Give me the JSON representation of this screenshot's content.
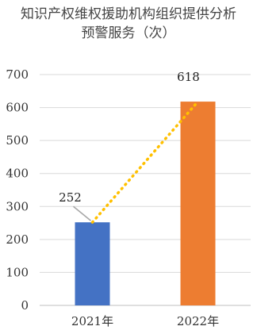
{
  "chart_data": {
    "type": "bar",
    "title": "知识产权维权援助机构组织提供分析预警服务（次）",
    "categories": [
      "2021年",
      "2022年"
    ],
    "values": [
      252,
      618
    ],
    "bar_colors": [
      "#4472C4",
      "#ED7D31"
    ],
    "trendline": {
      "style": "dotted",
      "color": "#FFC000"
    },
    "data_labels": [
      "252",
      "618"
    ],
    "ylim": [
      0,
      700
    ],
    "yticks": [
      0,
      100,
      200,
      300,
      400,
      500,
      600,
      700
    ],
    "grid": true,
    "gridline_color": "#d9d9d9"
  }
}
